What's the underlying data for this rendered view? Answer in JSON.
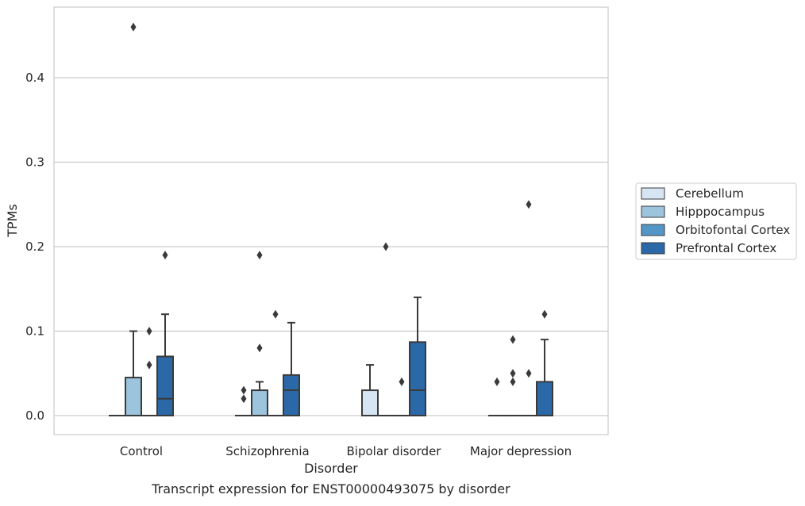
{
  "caption": "Transcript expression for ENST00000493075 by disorder",
  "chart_data": {
    "type": "box",
    "title": "",
    "xlabel": "Disorder",
    "ylabel": "TPMs",
    "categories": [
      "Control",
      "Schizophrenia",
      "Bipolar disorder",
      "Major depression"
    ],
    "ylim": [
      -0.022,
      0.483
    ],
    "yticks": [
      "0.0",
      "0.1",
      "0.2",
      "0.3",
      "0.4"
    ],
    "grid": "horizontal",
    "legend_position": "right",
    "series": [
      {
        "name": "Cerebellum",
        "color": "#d6e5f4",
        "boxes": [
          {
            "q1": 0,
            "median": 0,
            "q3": 0,
            "whisker_low": 0,
            "whisker_high": 0,
            "outliers": []
          },
          {
            "q1": 0,
            "median": 0,
            "q3": 0,
            "whisker_low": 0,
            "whisker_high": 0,
            "outliers": [
              0.02,
              0.03
            ]
          },
          {
            "q1": 0,
            "median": 0,
            "q3": 0.03,
            "whisker_low": 0,
            "whisker_high": 0.06,
            "outliers": []
          },
          {
            "q1": 0,
            "median": 0,
            "q3": 0,
            "whisker_low": 0,
            "whisker_high": 0,
            "outliers": [
              0.04
            ]
          }
        ]
      },
      {
        "name": "Hipppocampus",
        "color": "#9cc4dd",
        "boxes": [
          {
            "q1": 0,
            "median": 0,
            "q3": 0.045,
            "whisker_low": 0,
            "whisker_high": 0.1,
            "outliers": [
              0.46
            ]
          },
          {
            "q1": 0,
            "median": 0,
            "q3": 0.03,
            "whisker_low": 0,
            "whisker_high": 0.04,
            "outliers": [
              0.08,
              0.19
            ]
          },
          {
            "q1": 0,
            "median": 0,
            "q3": 0,
            "whisker_low": 0,
            "whisker_high": 0,
            "outliers": [
              0.2
            ]
          },
          {
            "q1": 0,
            "median": 0,
            "q3": 0,
            "whisker_low": 0,
            "whisker_high": 0,
            "outliers": [
              0.04,
              0.05,
              0.09
            ]
          }
        ]
      },
      {
        "name": "Orbitofontal Cortex",
        "color": "#5497c6",
        "boxes": [
          {
            "q1": 0,
            "median": 0,
            "q3": 0,
            "whisker_low": 0,
            "whisker_high": 0,
            "outliers": [
              0.06,
              0.1
            ]
          },
          {
            "q1": 0,
            "median": 0,
            "q3": 0,
            "whisker_low": 0,
            "whisker_high": 0,
            "outliers": [
              0.12
            ]
          },
          {
            "q1": 0,
            "median": 0,
            "q3": 0,
            "whisker_low": 0,
            "whisker_high": 0,
            "outliers": [
              0.04
            ]
          },
          {
            "q1": 0,
            "median": 0,
            "q3": 0,
            "whisker_low": 0,
            "whisker_high": 0,
            "outliers": [
              0.05,
              0.25
            ]
          }
        ]
      },
      {
        "name": "Prefrontal Cortex",
        "color": "#2a68a8",
        "boxes": [
          {
            "q1": 0,
            "median": 0.02,
            "q3": 0.07,
            "whisker_low": 0,
            "whisker_high": 0.12,
            "outliers": [
              0.19
            ]
          },
          {
            "q1": 0,
            "median": 0.03,
            "q3": 0.048,
            "whisker_low": 0,
            "whisker_high": 0.11,
            "outliers": []
          },
          {
            "q1": 0,
            "median": 0.03,
            "q3": 0.087,
            "whisker_low": 0,
            "whisker_high": 0.14,
            "outliers": []
          },
          {
            "q1": 0,
            "median": 0,
            "q3": 0.04,
            "whisker_low": 0,
            "whisker_high": 0.09,
            "outliers": [
              0.12
            ]
          }
        ]
      }
    ]
  }
}
